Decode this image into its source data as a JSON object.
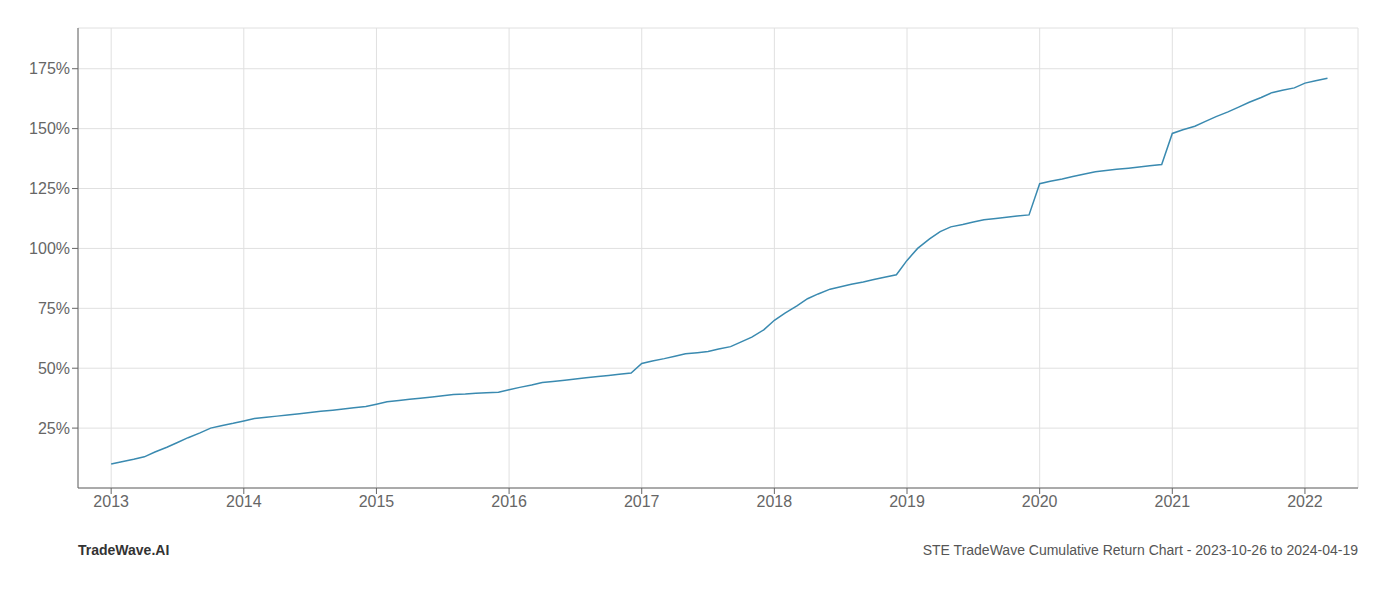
{
  "chart_data": {
    "type": "line",
    "title": "STE TradeWave Cumulative Return Chart - 2023-10-26 to 2024-04-19",
    "annotations": [
      "TradeWave.AI"
    ],
    "color": "#3a8ab0",
    "grid": true,
    "x": [
      2013.0,
      2013.08,
      2013.17,
      2013.25,
      2013.33,
      2013.42,
      2013.5,
      2013.58,
      2013.67,
      2013.75,
      2013.83,
      2013.92,
      2014.0,
      2014.08,
      2014.17,
      2014.25,
      2014.33,
      2014.42,
      2014.5,
      2014.58,
      2014.67,
      2014.75,
      2014.83,
      2014.92,
      2015.0,
      2015.08,
      2015.17,
      2015.25,
      2015.33,
      2015.42,
      2015.5,
      2015.58,
      2015.67,
      2015.75,
      2015.83,
      2015.92,
      2016.0,
      2016.08,
      2016.17,
      2016.25,
      2016.33,
      2016.42,
      2016.5,
      2016.58,
      2016.67,
      2016.75,
      2016.83,
      2016.92,
      2017.0,
      2017.08,
      2017.17,
      2017.25,
      2017.33,
      2017.42,
      2017.5,
      2017.58,
      2017.67,
      2017.75,
      2017.83,
      2017.92,
      2018.0,
      2018.08,
      2018.17,
      2018.25,
      2018.33,
      2018.42,
      2018.5,
      2018.58,
      2018.67,
      2018.75,
      2018.83,
      2018.92,
      2019.0,
      2019.08,
      2019.17,
      2019.25,
      2019.33,
      2019.42,
      2019.5,
      2019.58,
      2019.67,
      2019.75,
      2019.83,
      2019.92,
      2020.0,
      2020.08,
      2020.17,
      2020.25,
      2020.33,
      2020.42,
      2020.5,
      2020.58,
      2020.67,
      2020.75,
      2020.83,
      2020.92,
      2021.0,
      2021.08,
      2021.17,
      2021.25,
      2021.33,
      2021.42,
      2021.5,
      2021.58,
      2021.67,
      2021.75,
      2021.83,
      2021.92,
      2022.0,
      2022.08,
      2022.17
    ],
    "values": [
      10,
      11,
      12,
      13,
      15,
      17,
      19,
      21,
      23,
      25,
      26,
      27,
      28,
      29,
      29.5,
      30,
      30.5,
      31,
      31.5,
      32,
      32.5,
      33,
      33.5,
      34,
      35,
      36,
      36.5,
      37,
      37.5,
      38,
      38.5,
      39,
      39.2,
      39.5,
      39.8,
      40,
      41,
      42,
      43,
      44,
      44.5,
      45,
      45.5,
      46,
      46.5,
      47,
      47.5,
      48,
      52,
      53,
      54,
      55,
      56,
      56.5,
      57,
      58,
      59,
      61,
      63,
      66,
      70,
      73,
      76,
      79,
      81,
      83,
      84,
      85,
      86,
      87,
      88,
      89,
      95,
      100,
      104,
      107,
      109,
      110,
      111,
      112,
      112.5,
      113,
      113.5,
      114,
      127,
      128,
      129,
      130,
      131,
      132,
      132.5,
      133,
      133.5,
      134,
      134.5,
      135,
      148,
      149.5,
      151,
      153,
      155,
      157,
      159,
      161,
      163,
      165,
      166,
      167,
      169,
      170,
      171
    ],
    "xlim": [
      2012.75,
      2022.4
    ],
    "xticks": [
      2013,
      2014,
      2015,
      2016,
      2017,
      2018,
      2019,
      2020,
      2021,
      2022
    ],
    "ylim": [
      0,
      192
    ],
    "yticks": [
      {
        "value": 25,
        "label": "25%"
      },
      {
        "value": 50,
        "label": "50%"
      },
      {
        "value": 75,
        "label": "75%"
      },
      {
        "value": 100,
        "label": "100%"
      },
      {
        "value": 125,
        "label": "125%"
      },
      {
        "value": 150,
        "label": "150%"
      },
      {
        "value": 175,
        "label": "175%"
      }
    ]
  }
}
